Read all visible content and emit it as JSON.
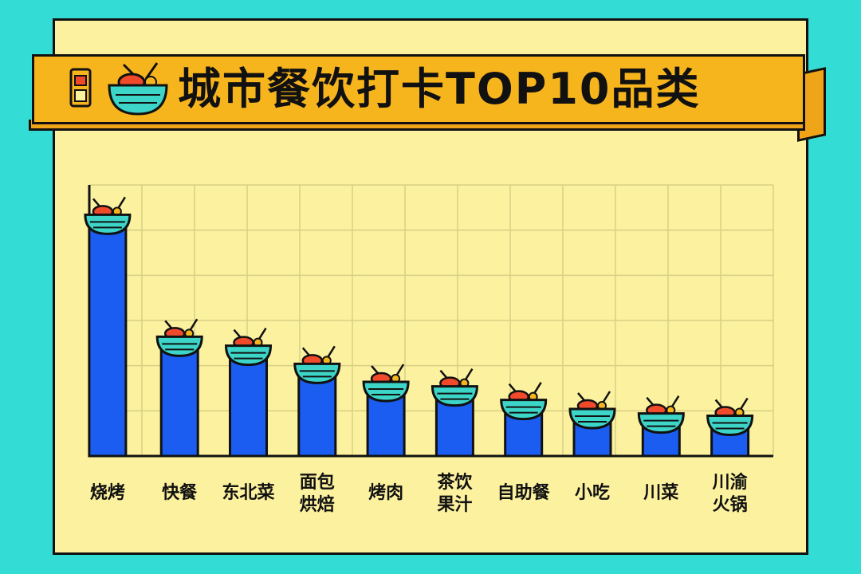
{
  "header": {
    "title": "城市餐饮打卡TOP10品类"
  },
  "chart_data": {
    "type": "bar",
    "title": "城市餐饮打卡TOP10品类",
    "categories": [
      "烧烤",
      "快餐",
      "东北菜",
      "面包\n烘焙",
      "烤肉",
      "茶饮\n果汁",
      "自助餐",
      "小吃",
      "川菜",
      "川渝\n火锅"
    ],
    "values": [
      52,
      25,
      23,
      19,
      15,
      14,
      11,
      9,
      8,
      7.5
    ],
    "ylim": [
      0,
      60
    ],
    "xlabel": "",
    "ylabel": "",
    "grid": true,
    "colors": {
      "bar": "#1a5df0",
      "bowl": "#3dd5c8",
      "grid": "#d9cf86",
      "outline": "#111111"
    }
  }
}
